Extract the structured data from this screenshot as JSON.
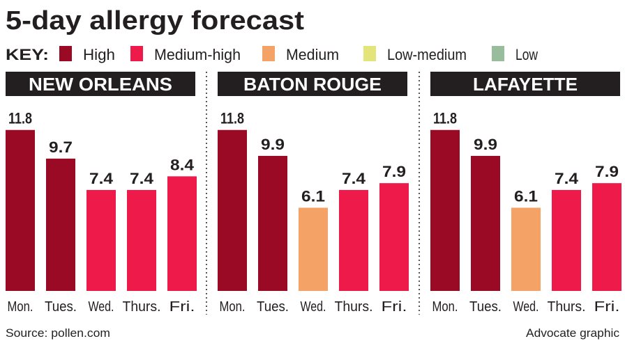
{
  "title": "5-day allergy forecast",
  "key": {
    "label": "KEY:",
    "levels": [
      {
        "name": "High",
        "color": "#9b0a24"
      },
      {
        "name": "Medium-high",
        "color": "#ee1a4a"
      },
      {
        "name": "Medium",
        "color": "#f5a266"
      },
      {
        "name": "Low-medium",
        "color": "#e3e57a"
      },
      {
        "name": "Low",
        "color": "#97bd9d"
      }
    ]
  },
  "chart_data": [
    {
      "type": "bar",
      "title": "NEW ORLEANS",
      "categories": [
        "Mon.",
        "Tues.",
        "Wed.",
        "Thurs.",
        "Fri."
      ],
      "values": [
        11.8,
        9.7,
        7.4,
        7.4,
        8.4
      ],
      "levels": [
        "High",
        "High",
        "Medium-high",
        "Medium-high",
        "Medium-high"
      ]
    },
    {
      "type": "bar",
      "title": "BATON ROUGE",
      "categories": [
        "Mon.",
        "Tues.",
        "Wed.",
        "Thurs.",
        "Fri."
      ],
      "values": [
        11.8,
        9.9,
        6.1,
        7.4,
        7.9
      ],
      "levels": [
        "High",
        "High",
        "Medium",
        "Medium-high",
        "Medium-high"
      ]
    },
    {
      "type": "bar",
      "title": "LAFAYETTE",
      "categories": [
        "Mon.",
        "Tues.",
        "Wed.",
        "Thurs.",
        "Fri."
      ],
      "values": [
        11.8,
        9.9,
        6.1,
        7.4,
        7.9
      ],
      "levels": [
        "High",
        "High",
        "Medium",
        "Medium-high",
        "Medium-high"
      ]
    }
  ],
  "footer": {
    "source": "Source: pollen.com",
    "credit": "Advocate graphic"
  }
}
